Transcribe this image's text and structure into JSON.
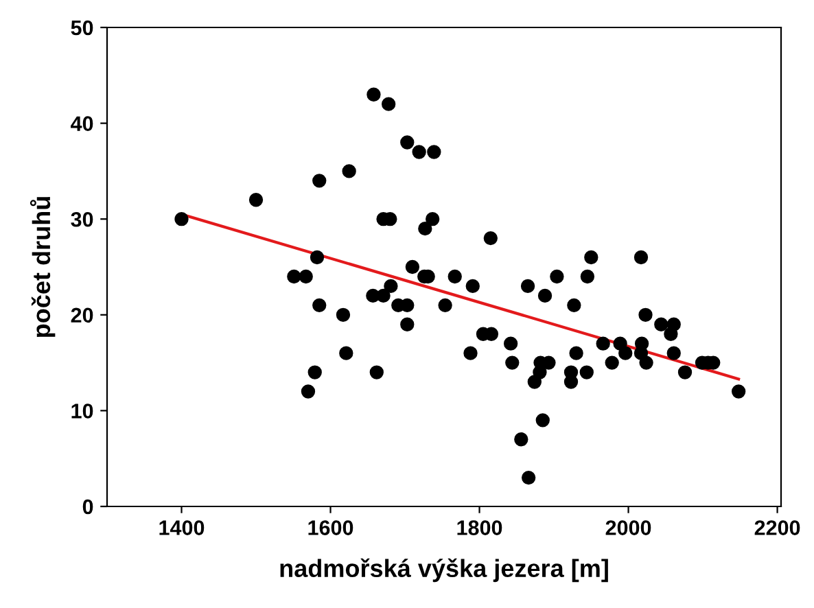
{
  "chart_data": {
    "type": "scatter",
    "xlabel": "nadmořská výška jezera [m]",
    "ylabel": "počet druhů",
    "xlim": [
      1300,
      2205
    ],
    "ylim": [
      0,
      50
    ],
    "xticks": [
      1400,
      1600,
      1800,
      2000,
      2200
    ],
    "yticks": [
      0,
      10,
      20,
      30,
      40,
      50
    ],
    "grid": false,
    "legend": false,
    "series": [
      {
        "marker": "circle",
        "color": "#000000",
        "x": [
          1400,
          1500,
          1551,
          1567,
          1582,
          1585,
          1585,
          1579,
          1570,
          1625,
          1617,
          1621,
          1662,
          1657,
          1671,
          1671,
          1680,
          1681,
          1691,
          1703,
          1703,
          1703,
          1719,
          1739,
          1710,
          1726,
          1731,
          1727,
          1737,
          1754,
          1658,
          1678,
          1815,
          1767,
          1791,
          1805,
          1816,
          1788,
          1842,
          1844,
          1865,
          1888,
          1904,
          1882,
          1893,
          1881,
          1874,
          1885,
          1856,
          1866,
          1927,
          1930,
          1923,
          1923,
          1944,
          1945,
          1950,
          1966,
          1978,
          1989,
          1996,
          2017,
          2023,
          2018,
          2017,
          2024,
          2044,
          2061,
          2057,
          2061,
          2076,
          2099,
          2107,
          2114,
          2148
        ],
        "values": [
          30,
          32,
          24,
          24,
          26,
          34,
          21,
          14,
          12,
          35,
          20,
          16,
          14,
          22,
          22,
          30,
          30,
          23,
          21,
          21,
          19,
          38,
          37,
          37,
          25,
          24,
          24,
          29,
          30,
          21,
          43,
          42,
          28,
          24,
          23,
          18,
          18,
          16,
          17,
          15,
          23,
          22,
          24,
          15,
          15,
          14,
          13,
          9,
          7,
          3,
          21,
          16,
          14,
          13,
          14,
          24,
          26,
          17,
          15,
          17,
          16,
          26,
          20,
          17,
          16,
          15,
          19,
          19,
          18,
          16,
          14,
          15,
          15,
          15,
          12
        ]
      },
      {
        "type": "line",
        "color": "#e31a1c",
        "x": [
          1400,
          2148
        ],
        "values": [
          30.5,
          13.3
        ]
      }
    ]
  }
}
